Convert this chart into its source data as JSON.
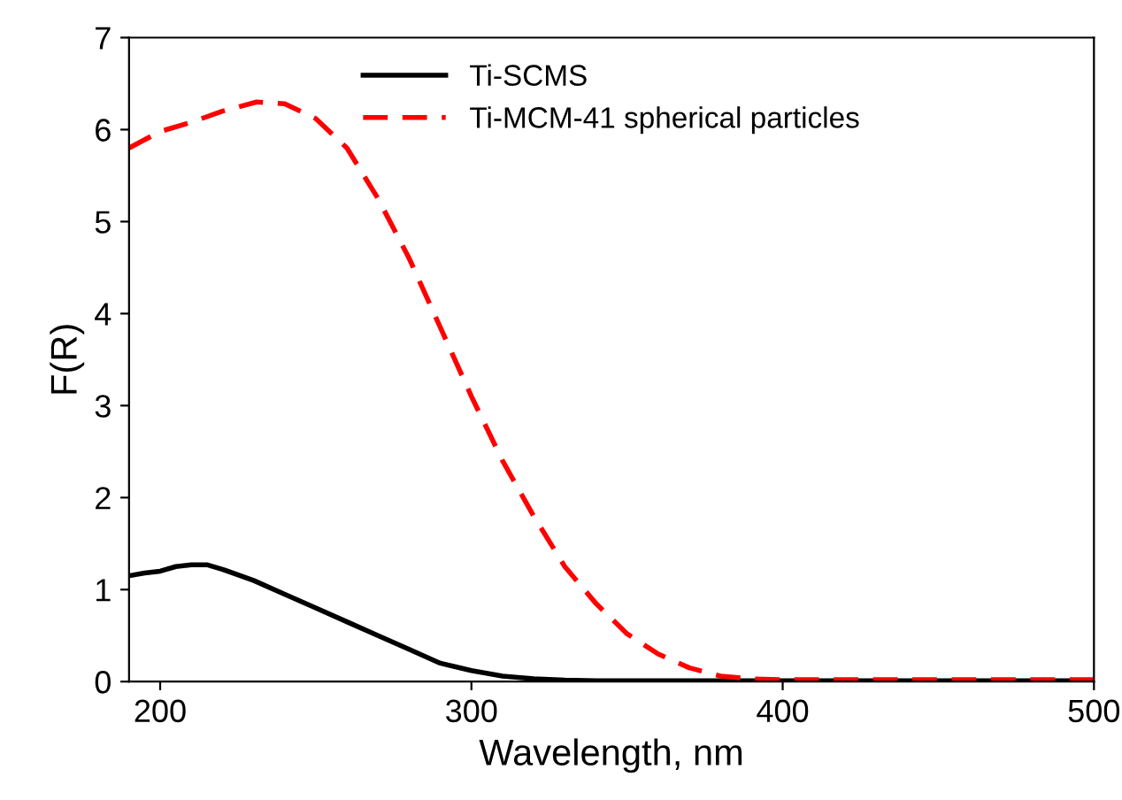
{
  "chart_data": {
    "type": "line",
    "xlabel": "Wavelength, nm",
    "ylabel": "F(R)",
    "xlim": [
      190,
      500
    ],
    "ylim": [
      0,
      7
    ],
    "xticks": [
      200,
      300,
      400,
      500
    ],
    "yticks": [
      0,
      1,
      2,
      3,
      4,
      5,
      6,
      7
    ],
    "legend": "top",
    "grid": false,
    "series": [
      {
        "name": "Ti-SCMS",
        "color": "#000000",
        "line_style": "solid",
        "x": [
          190,
          195,
          200,
          205,
          210,
          215,
          220,
          230,
          240,
          250,
          260,
          270,
          280,
          290,
          300,
          310,
          320,
          330,
          340,
          360,
          400,
          450,
          500
        ],
        "values": [
          1.15,
          1.18,
          1.2,
          1.25,
          1.27,
          1.27,
          1.22,
          1.1,
          0.95,
          0.8,
          0.65,
          0.5,
          0.35,
          0.2,
          0.12,
          0.06,
          0.03,
          0.015,
          0.01,
          0.01,
          0.01,
          0.01,
          0.01
        ]
      },
      {
        "name": "Ti-MCM-41 spherical particles",
        "color": "#ff0000",
        "line_style": "dashed",
        "x": [
          190,
          200,
          210,
          220,
          231,
          240,
          250,
          260,
          270,
          280,
          290,
          300,
          310,
          320,
          330,
          340,
          350,
          360,
          370,
          380,
          390,
          400,
          450,
          500
        ],
        "values": [
          5.8,
          5.98,
          6.08,
          6.2,
          6.3,
          6.28,
          6.12,
          5.8,
          5.25,
          4.6,
          3.85,
          3.1,
          2.4,
          1.8,
          1.25,
          0.85,
          0.52,
          0.3,
          0.15,
          0.06,
          0.03,
          0.02,
          0.02,
          0.02
        ]
      }
    ]
  }
}
